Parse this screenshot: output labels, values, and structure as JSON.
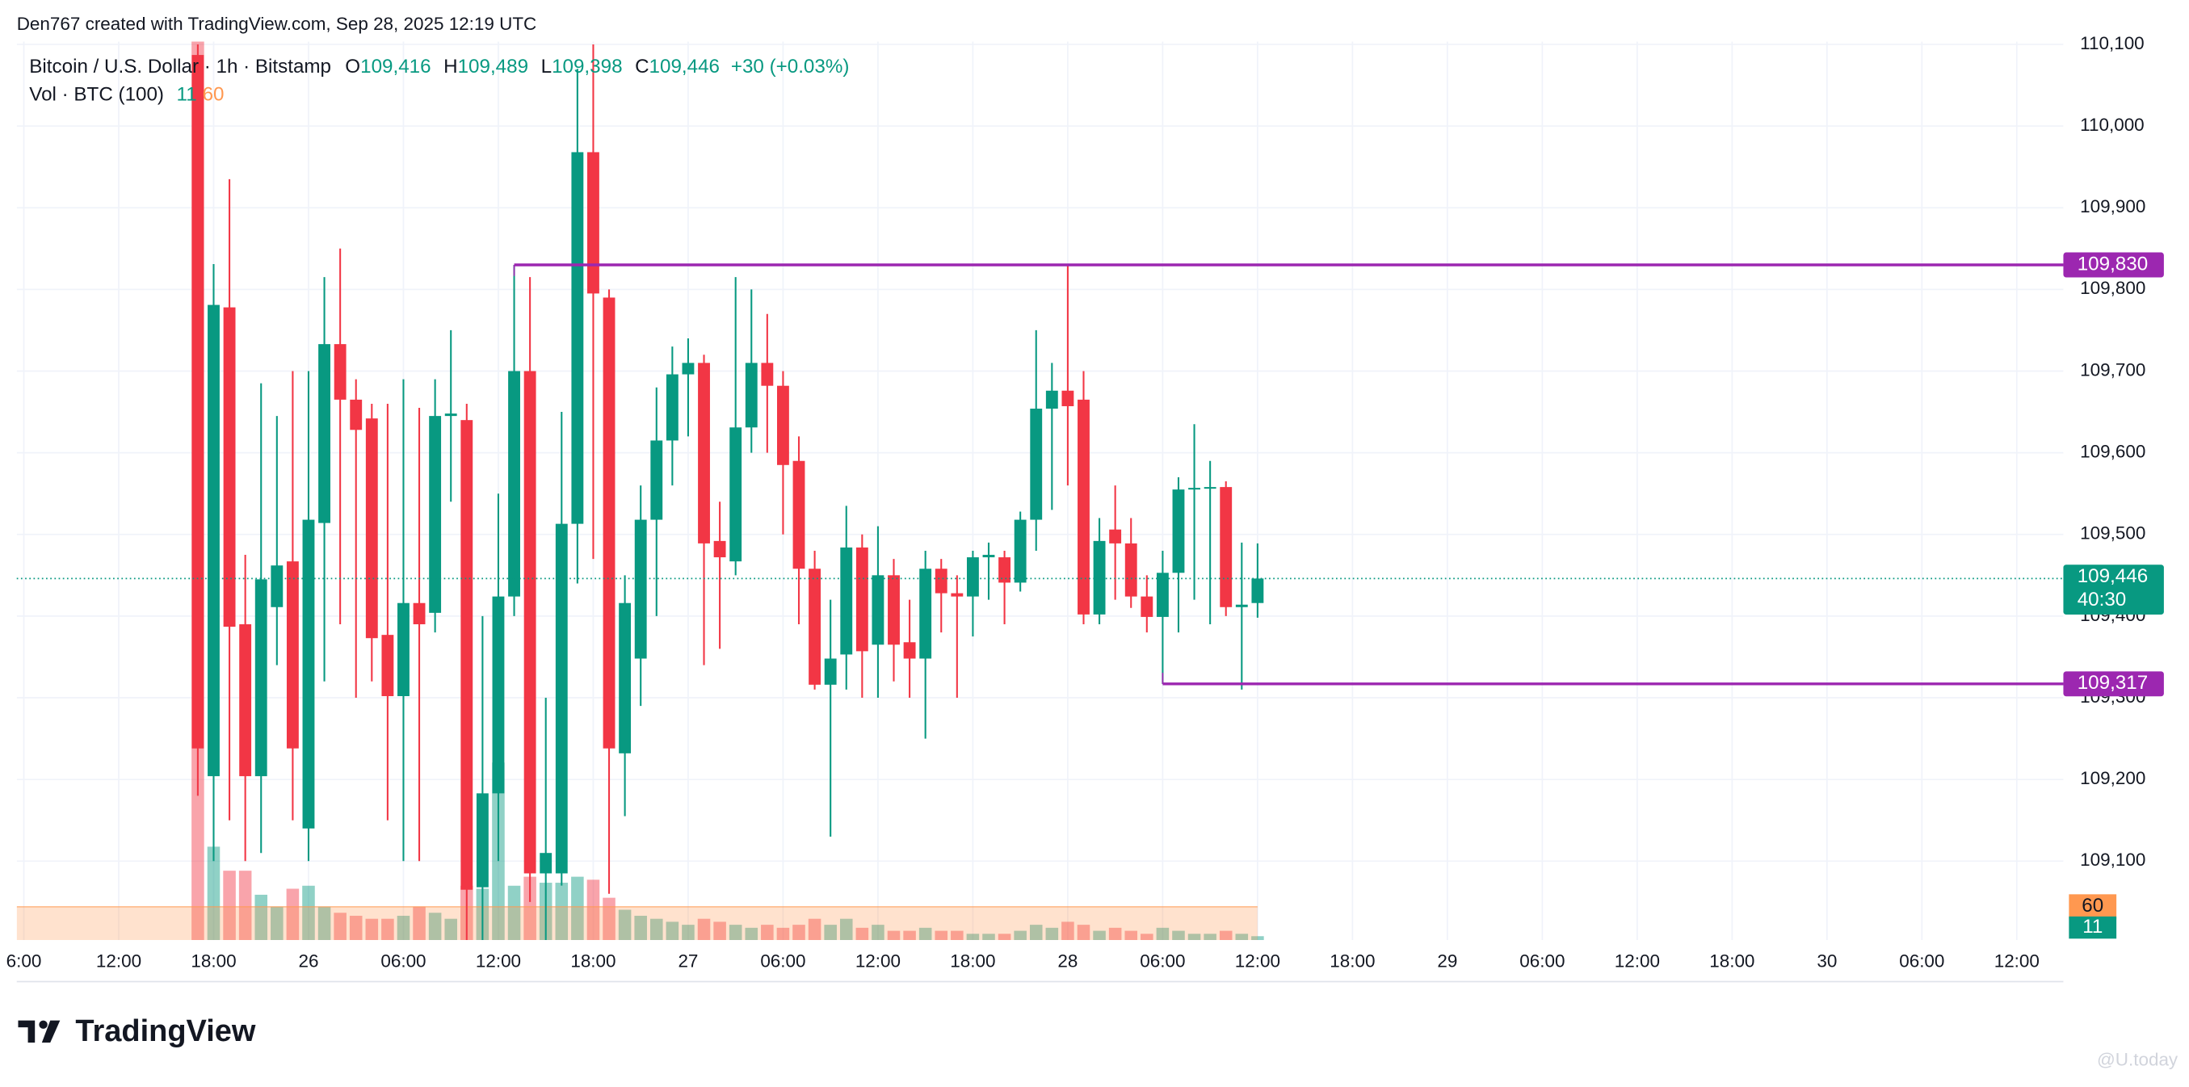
{
  "chart_data": {
    "type": "candlestick",
    "header": "Den767 created with TradingView.com, Sep 28, 2025 12:19 UTC",
    "symbol": "Bitcoin / U.S. Dollar · 1h · Bitstamp",
    "ohlc": [
      {
        "key": "O",
        "value": "109,416"
      },
      {
        "key": "H",
        "value": "109,489"
      },
      {
        "key": "L",
        "value": "109,398"
      },
      {
        "key": "C",
        "value": "109,446"
      }
    ],
    "change": "+30 (+0.03%)",
    "volume_title": "Vol · BTC (100)",
    "up_color": "#089981",
    "down_color": "#f23645",
    "level_color": "#9c27b0",
    "ma_color": "#ff9850",
    "open": [
      110087,
      109204,
      109778,
      109390,
      109204,
      109411,
      109467,
      109140,
      109514,
      109733,
      109665,
      109642,
      109377,
      109302,
      109416,
      109404,
      109645,
      109640,
      109068,
      109183,
      109424,
      109700,
      109085,
      109085,
      109513,
      109968,
      109790,
      109232,
      109348,
      109518,
      109615,
      109696,
      109710,
      109492,
      109467,
      109631,
      109710,
      109682,
      109590,
      109458,
      109316,
      109353,
      109484,
      109365,
      109450,
      109368,
      109348,
      109458,
      109428,
      109424,
      109472,
      109472,
      109441,
      109518,
      109654,
      109676,
      109665,
      109402,
      109506,
      109489,
      109424,
      109399,
      109453,
      109555,
      109557,
      109558,
      109411,
      109416
    ],
    "high": [
      110100,
      109831,
      109935,
      109475,
      109685,
      109645,
      109700,
      109700,
      109815,
      109850,
      109690,
      109660,
      109660,
      109690,
      109655,
      109690,
      109750,
      109660,
      109400,
      109550,
      109830,
      109815,
      109300,
      109650,
      110070,
      110100,
      109800,
      109450,
      109560,
      109680,
      109730,
      109740,
      109720,
      109540,
      109815,
      109800,
      109770,
      109700,
      109620,
      109480,
      109420,
      109535,
      109500,
      109510,
      109470,
      109420,
      109480,
      109470,
      109450,
      109480,
      109490,
      109480,
      109528,
      109750,
      109710,
      109830,
      109700,
      109520,
      109560,
      109520,
      109450,
      109480,
      109570,
      109635,
      109590,
      109565,
      109490,
      109489
    ],
    "low": [
      109180,
      109100,
      109150,
      109100,
      109110,
      109340,
      109150,
      109100,
      109320,
      109390,
      109300,
      109320,
      109150,
      109100,
      109100,
      109380,
      109540,
      109000,
      109000,
      109100,
      109400,
      109050,
      109000,
      109070,
      109440,
      109470,
      109060,
      109155,
      109290,
      109400,
      109560,
      109620,
      109340,
      109360,
      109450,
      109600,
      109600,
      109500,
      109390,
      109310,
      109130,
      109310,
      109300,
      109300,
      109320,
      109300,
      109250,
      109380,
      109300,
      109375,
      109420,
      109390,
      109430,
      109480,
      109530,
      109560,
      109390,
      109390,
      109420,
      109410,
      109380,
      109317,
      109380,
      109420,
      109390,
      109400,
      109310,
      109398
    ],
    "close": [
      109238,
      109781,
      109387,
      109204,
      109445,
      109462,
      109238,
      109518,
      109733,
      109665,
      109628,
      109373,
      109302,
      109416,
      109390,
      109645,
      109648,
      109065,
      109183,
      109424,
      109700,
      109085,
      109110,
      109513,
      109968,
      109795,
      109238,
      109416,
      109518,
      109615,
      109696,
      109710,
      109489,
      109472,
      109631,
      109710,
      109682,
      109585,
      109458,
      109316,
      109348,
      109484,
      109357,
      109450,
      109365,
      109348,
      109458,
      109428,
      109424,
      109472,
      109475,
      109441,
      109518,
      109654,
      109676,
      109657,
      109402,
      109492,
      109489,
      109424,
      109399,
      109453,
      109555,
      109557,
      109558,
      109411,
      109414,
      109446
    ],
    "volumes": [
      1560,
      160,
      120,
      120,
      80,
      60,
      90,
      95,
      60,
      50,
      45,
      40,
      40,
      45,
      60,
      50,
      40,
      95,
      90,
      300,
      95,
      110,
      100,
      100,
      110,
      105,
      75,
      55,
      45,
      40,
      35,
      30,
      40,
      35,
      30,
      25,
      30,
      25,
      30,
      40,
      30,
      40,
      25,
      30,
      20,
      20,
      25,
      20,
      20,
      15,
      15,
      15,
      20,
      30,
      25,
      35,
      30,
      20,
      25,
      20,
      15,
      25,
      20,
      15,
      15,
      20,
      15,
      11
    ],
    "volume_ma": 60,
    "ylim": [
      109000,
      110100
    ],
    "yticks": [
      {
        "value": 110100,
        "label": "110,100"
      },
      {
        "value": 110000,
        "label": "110,000"
      },
      {
        "value": 109900,
        "label": "109,900"
      },
      {
        "value": 109800,
        "label": "109,800"
      },
      {
        "value": 109700,
        "label": "109,700"
      },
      {
        "value": 109600,
        "label": "109,600"
      },
      {
        "value": 109500,
        "label": "109,500"
      },
      {
        "value": 109400,
        "label": "109,400"
      },
      {
        "value": 109300,
        "label": "109,300"
      },
      {
        "value": 109200,
        "label": "109,200"
      },
      {
        "value": 109100,
        "label": "109,100"
      }
    ],
    "xticks": [
      "6:00",
      "12:00",
      "18:00",
      "26",
      "06:00",
      "12:00",
      "18:00",
      "27",
      "06:00",
      "12:00",
      "18:00",
      "28",
      "06:00",
      "12:00",
      "18:00",
      "29",
      "06:00",
      "12:00",
      "18:00",
      "30",
      "06:00",
      "12:00"
    ],
    "levels": [
      {
        "value": 109830,
        "label": "109,830"
      },
      {
        "value": 109317,
        "label": "109,317"
      }
    ],
    "current_price": {
      "value": 109446,
      "label": "109,446"
    },
    "countdown": "40:30",
    "grid": true,
    "brand": "TradingView",
    "watermark": "@U.today"
  }
}
